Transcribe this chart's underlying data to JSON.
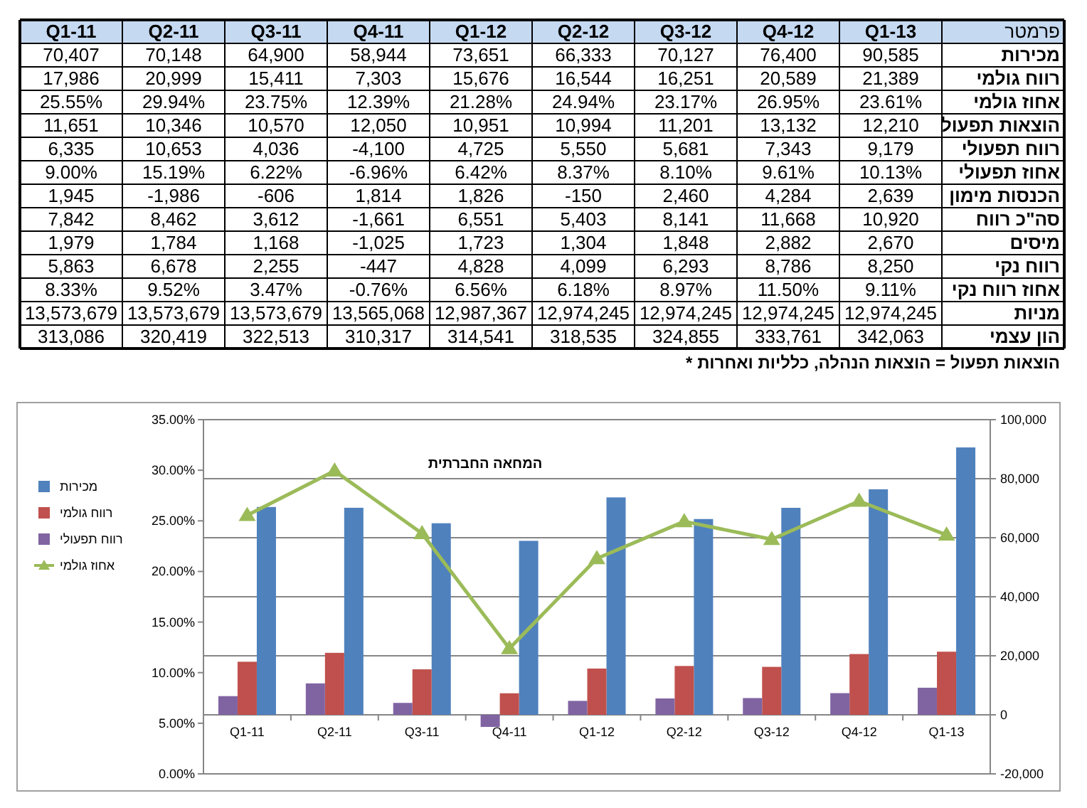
{
  "chart_data": [
    {
      "type": "other",
      "ylabel": "פרמטר",
      "categories": [
        "Q1-11",
        "Q2-11",
        "Q3-11",
        "Q4-11",
        "Q1-12",
        "Q2-12",
        "Q3-12",
        "Q4-12",
        "Q1-13"
      ],
      "y_categories": [
        "מכירות",
        "רווח גולמי",
        "אחוז גולמי",
        "הוצאות תפעול",
        "רווח תפעולי",
        "אחוז תפעולי",
        "הכנסות מימון",
        "סה\"כ רווח",
        "מיסים",
        "רווח נקי",
        "אחוז רווח נקי",
        "מניות",
        "הון עצמי"
      ],
      "cell_labels": [
        [
          "70,407",
          "70,148",
          "64,900",
          "58,944",
          "73,651",
          "66,333",
          "70,127",
          "76,400",
          "90,585"
        ],
        [
          "17,986",
          "20,999",
          "15,411",
          "7,303",
          "15,676",
          "16,544",
          "16,251",
          "20,589",
          "21,389"
        ],
        [
          "25.55%",
          "29.94%",
          "23.75%",
          "12.39%",
          "21.28%",
          "24.94%",
          "23.17%",
          "26.95%",
          "23.61%"
        ],
        [
          "11,651",
          "10,346",
          "10,570",
          "12,050",
          "10,951",
          "10,994",
          "11,201",
          "13,132",
          "12,210"
        ],
        [
          "6,335",
          "10,653",
          "4,036",
          "-4,100",
          "4,725",
          "5,550",
          "5,681",
          "7,343",
          "9,179"
        ],
        [
          "9.00%",
          "15.19%",
          "6.22%",
          "-6.96%",
          "6.42%",
          "8.37%",
          "8.10%",
          "9.61%",
          "10.13%"
        ],
        [
          "1,945",
          "-1,986",
          "-606",
          "1,814",
          "1,826",
          "-150",
          "2,460",
          "4,284",
          "2,639"
        ],
        [
          "7,842",
          "8,462",
          "3,612",
          "-1,661",
          "6,551",
          "5,403",
          "8,141",
          "11,668",
          "10,920"
        ],
        [
          "1,979",
          "1,784",
          "1,168",
          "-1,025",
          "1,723",
          "1,304",
          "1,848",
          "2,882",
          "2,670"
        ],
        [
          "5,863",
          "6,678",
          "2,255",
          "-447",
          "4,828",
          "4,099",
          "6,293",
          "8,786",
          "8,250"
        ],
        [
          "8.33%",
          "9.52%",
          "3.47%",
          "-0.76%",
          "6.56%",
          "6.18%",
          "8.97%",
          "11.50%",
          "9.11%"
        ],
        [
          "13,573,679",
          "13,573,679",
          "13,573,679",
          "13,565,068",
          "12,987,367",
          "12,974,245",
          "12,974,245",
          "12,974,245",
          "12,974,245"
        ],
        [
          "313,086",
          "320,419",
          "322,513",
          "310,317",
          "314,541",
          "318,535",
          "324,855",
          "333,761",
          "342,063"
        ]
      ],
      "annotations": [
        "* הוצאות תפעול = הוצאות הנהלה, כלליות ואחרות"
      ]
    },
    {
      "type": "bar",
      "categories": [
        "Q1-11",
        "Q2-11",
        "Q3-11",
        "Q4-11",
        "Q1-12",
        "Q2-12",
        "Q3-12",
        "Q4-12",
        "Q1-13"
      ],
      "series": [
        {
          "name": "מכירות",
          "color": "#4f81bd",
          "axis": "y2",
          "values": [
            70407,
            70148,
            64900,
            58944,
            73651,
            66333,
            70127,
            76400,
            90585
          ]
        },
        {
          "name": "רווח גולמי",
          "color": "#c0504d",
          "axis": "y2",
          "values": [
            17986,
            20999,
            15411,
            7303,
            15676,
            16544,
            16251,
            20589,
            21389
          ]
        },
        {
          "name": "רווח תפעולי",
          "color": "#8064a2",
          "axis": "y2",
          "values": [
            6335,
            10653,
            4036,
            -4100,
            4725,
            5550,
            5681,
            7343,
            9179
          ]
        },
        {
          "name": "אחוז גולמי",
          "type": "line",
          "color": "#9bbb59",
          "marker": "triangle",
          "values": [
            25.55,
            29.94,
            23.75,
            12.39,
            21.28,
            24.94,
            23.17,
            26.95,
            23.61
          ]
        }
      ],
      "ylim": [
        0,
        35
      ],
      "yticks": [
        {
          "value": 0,
          "label": "0.00%"
        },
        {
          "value": 5,
          "label": "5.00%"
        },
        {
          "value": 10,
          "label": "10.00%"
        },
        {
          "value": 15,
          "label": "15.00%"
        },
        {
          "value": 20,
          "label": "20.00%"
        },
        {
          "value": 25,
          "label": "25.00%"
        },
        {
          "value": 30,
          "label": "30.00%"
        },
        {
          "value": 35,
          "label": "35.00%"
        }
      ],
      "y2lim": [
        -20000,
        100000
      ],
      "y2ticks": [
        {
          "value": -20000,
          "label": "-20,000"
        },
        0,
        {
          "value": 20000,
          "label": "20,000"
        },
        {
          "value": 40000,
          "label": "40,000"
        },
        {
          "value": 60000,
          "label": "60,000"
        },
        {
          "value": 80000,
          "label": "80,000"
        },
        {
          "value": 100000,
          "label": "100,000"
        }
      ],
      "grid": "y2",
      "legend": "left",
      "annotations": [
        "המחאה החברתית"
      ]
    }
  ]
}
